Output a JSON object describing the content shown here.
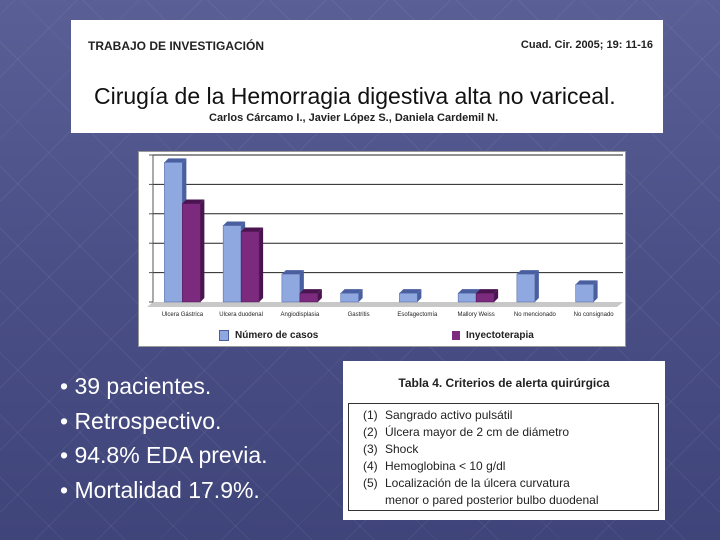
{
  "header": {
    "section": "TRABAJO DE INVESTIGACIÓN",
    "citation": "Cuad. Cir. 2005; 19: 11-16",
    "title": "Cirugía de la Hemorragia digestiva alta no variceal.",
    "authors": "Carlos Cárcamo I., Javier López S., Daniela Cardemil N."
  },
  "chart_data": {
    "type": "bar",
    "categories": [
      "Ulcera Gástrica",
      "Ulcera duodenal",
      "Angiodisplasia",
      "Gastritis",
      "Esofagectomía",
      "Mallory Weiss",
      "No mencionado",
      "No consignado"
    ],
    "series": [
      {
        "name": "Número de casos",
        "values": [
          9.5,
          5.2,
          1.9,
          0.6,
          0.6,
          0.6,
          1.9,
          1.2
        ],
        "color": "#8fa8e0"
      },
      {
        "name": "Inyectoterapia",
        "values": [
          6.7,
          4.8,
          0.6,
          0.0,
          0.0,
          0.6,
          0.0,
          0.0
        ],
        "color": "#7b2a7d"
      }
    ],
    "ylim": [
      0,
      10
    ],
    "grid": true,
    "legend_position": "bottom"
  },
  "bullets": [
    "• 39 pacientes.",
    "• Retrospectivo.",
    "• 94.8% EDA previa.",
    "• Mortalidad 17.9%."
  ],
  "table": {
    "title": "Tabla 4. Criterios de alerta quirúrgica",
    "items": [
      {
        "num": "(1)",
        "text": "Sangrado activo pulsátil"
      },
      {
        "num": "(2)",
        "text": "Úlcera mayor de 2 cm de diámetro"
      },
      {
        "num": "(3)",
        "text": "Shock"
      },
      {
        "num": "(4)",
        "text": "Hemoglobina < 10 g/dl"
      },
      {
        "num": "(5)",
        "text": "Localización de la úlcera curvatura"
      },
      {
        "num": "",
        "text": "menor o pared posterior bulbo duodenal"
      }
    ]
  }
}
